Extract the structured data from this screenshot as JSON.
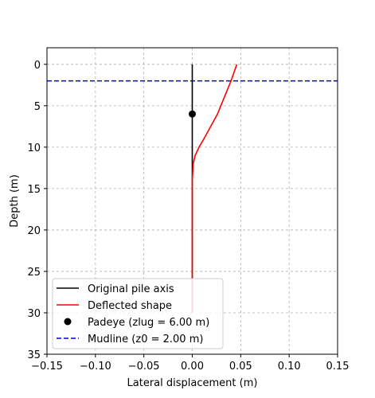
{
  "chart_data": {
    "type": "line",
    "title": "",
    "xlabel": "Lateral displacement (m)",
    "ylabel": "Depth (m)",
    "xlim": [
      -0.15,
      0.15
    ],
    "ylim": [
      35,
      -2
    ],
    "y_inverted": true,
    "grid": true,
    "legend_position": "lower-left",
    "x_ticks": [
      -0.15,
      -0.1,
      -0.05,
      0.0,
      0.05,
      0.1,
      0.15
    ],
    "x_tick_labels": [
      "−0.15",
      "−0.10",
      "−0.05",
      "0.00",
      "0.05",
      "0.10",
      "0.15"
    ],
    "y_ticks": [
      0,
      5,
      10,
      15,
      20,
      25,
      30,
      35
    ],
    "y_tick_labels": [
      "0",
      "5",
      "10",
      "15",
      "20",
      "25",
      "30",
      "35"
    ],
    "series": [
      {
        "name": "Original pile axis",
        "kind": "line",
        "color": "#000000",
        "style": "solid",
        "x": [
          0,
          0
        ],
        "y": [
          0,
          30
        ]
      },
      {
        "name": "Deflected shape",
        "kind": "line",
        "color": "#ff0000",
        "style": "solid",
        "x": [
          0.046,
          0.04,
          0.033,
          0.026,
          0.019,
          0.012,
          0.007,
          0.003,
          0.001,
          0.0,
          0.0,
          0.0,
          0.0
        ],
        "y": [
          0,
          2,
          4,
          6,
          7.5,
          9,
          10,
          11,
          12,
          14,
          18,
          24,
          30
        ]
      },
      {
        "name": "Padeye (zlug = 6.00 m)",
        "kind": "point",
        "color": "#000000",
        "x": [
          0.0
        ],
        "y": [
          6.0
        ]
      },
      {
        "name": "Mudline (z0 = 2.00 m)",
        "kind": "hline",
        "color": "#0000cc",
        "style": "dashed",
        "y": 2.0
      }
    ]
  }
}
